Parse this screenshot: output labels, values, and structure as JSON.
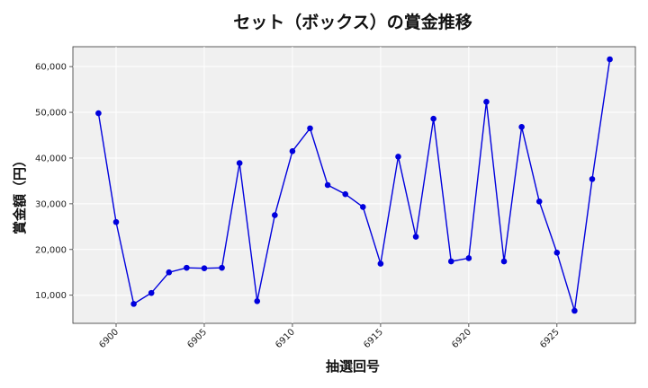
{
  "chart_data": {
    "type": "line",
    "title": "セット（ボックス）の賞金推移",
    "xlabel": "抽選回号",
    "ylabel": "賞金額（円）",
    "x": [
      6899,
      6900,
      6901,
      6902,
      6903,
      6904,
      6905,
      6906,
      6907,
      6908,
      6909,
      6910,
      6911,
      6912,
      6913,
      6914,
      6915,
      6916,
      6917,
      6918,
      6919,
      6920,
      6921,
      6922,
      6923,
      6924,
      6925,
      6926,
      6927,
      6928
    ],
    "series": [
      {
        "values": [
          49800,
          26000,
          8100,
          10500,
          15000,
          16000,
          15900,
          16000,
          38900,
          8700,
          27500,
          41500,
          46500,
          34100,
          32100,
          29300,
          16900,
          40300,
          22800,
          48600,
          17400,
          18100,
          52300,
          17400,
          46800,
          30500,
          19300,
          6600,
          35400,
          61600
        ]
      }
    ],
    "xticks": [
      6900,
      6905,
      6910,
      6915,
      6920,
      6925
    ],
    "xtick_labels": [
      "6900",
      "6905",
      "6910",
      "6915",
      "6920",
      "6925"
    ],
    "yticks": [
      10000,
      20000,
      30000,
      40000,
      50000,
      60000
    ],
    "ytick_labels": [
      "10,000",
      "20,000",
      "30,000",
      "40,000",
      "50,000",
      "60,000"
    ],
    "xlim": [
      6897.55,
      6929.45
    ],
    "ylim": [
      3850,
      64350
    ],
    "grid": true,
    "line_color": "#0000dd",
    "marker_color": "#0000dd",
    "plot_background": "#f0f0f0"
  }
}
